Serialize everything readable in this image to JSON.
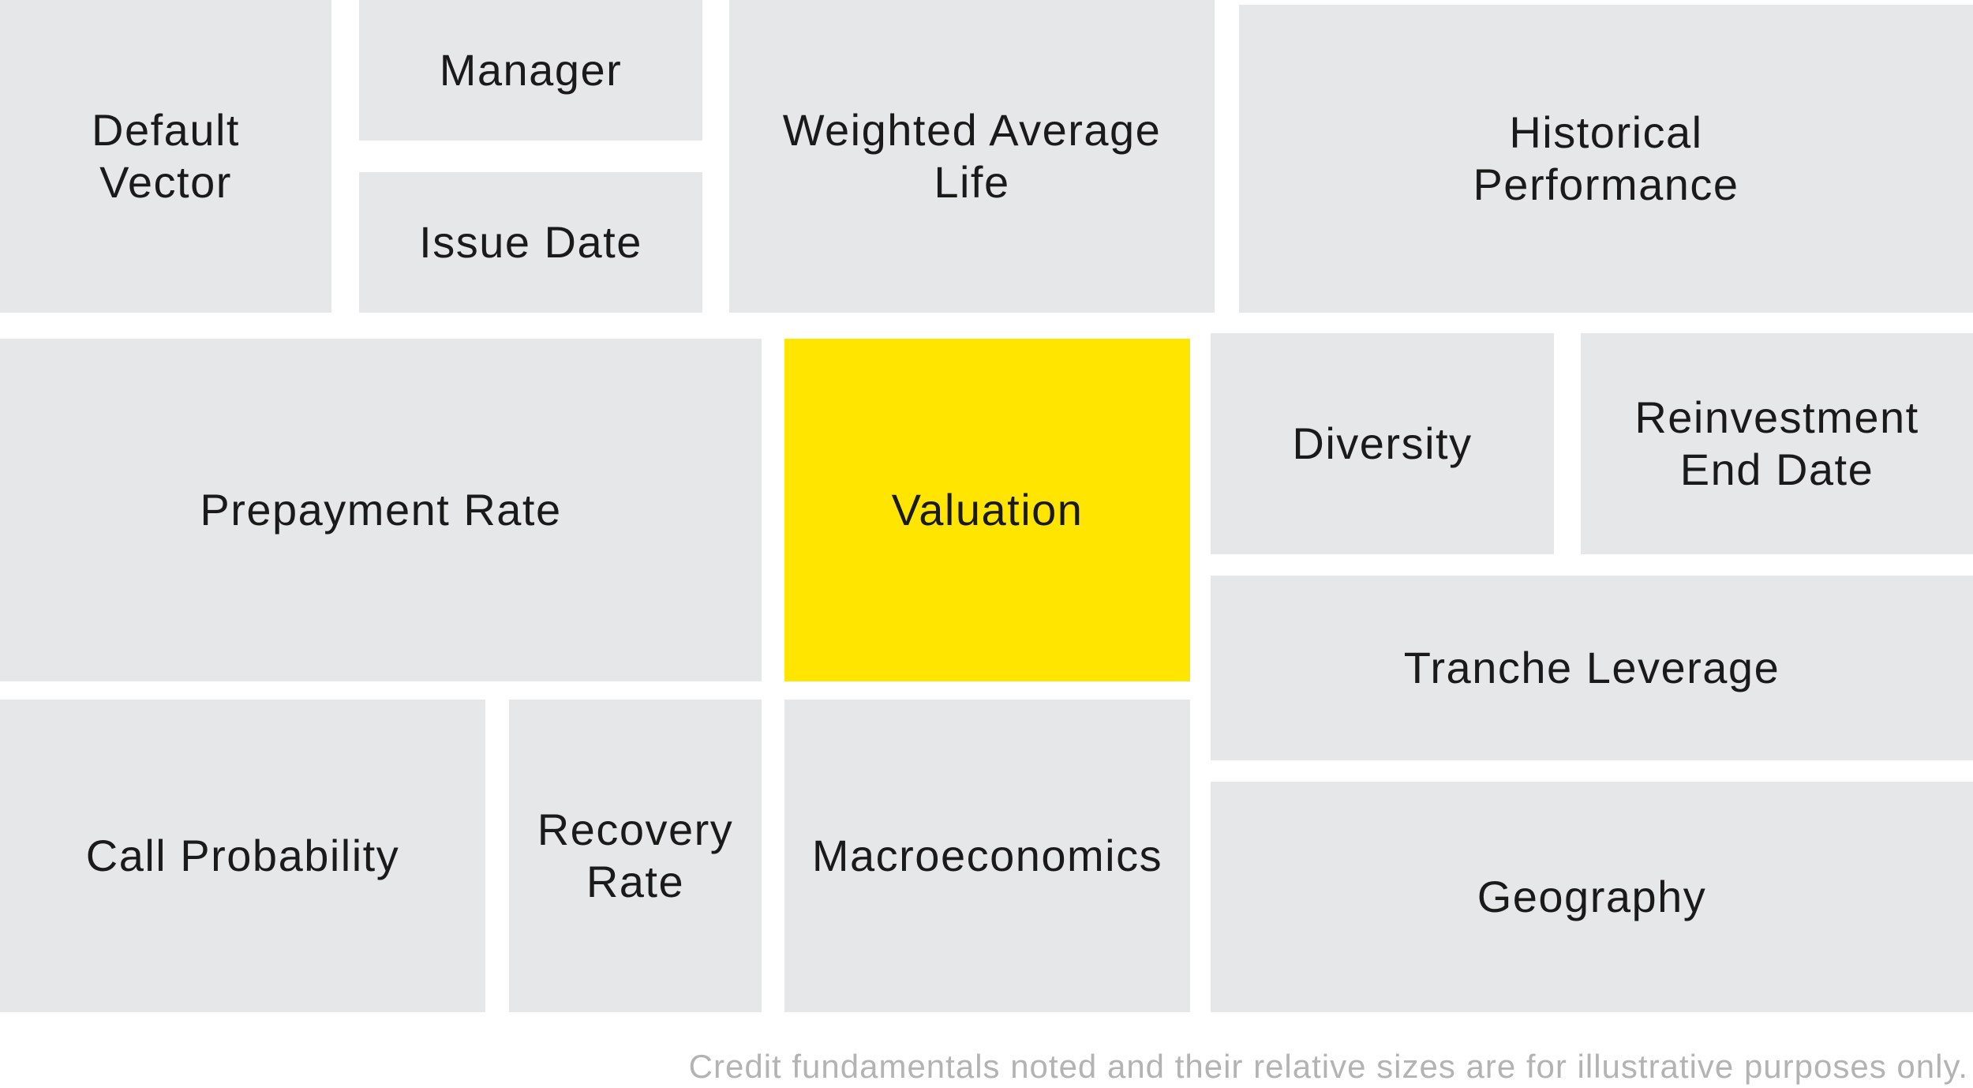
{
  "tiles": {
    "default_vector": "Default\nVector",
    "manager": "Manager",
    "issue_date": "Issue Date",
    "weighted_average_life": "Weighted Average\nLife",
    "historical_performance": "Historical\nPerformance",
    "prepayment_rate": "Prepayment Rate",
    "valuation": "Valuation",
    "diversity": "Diversity",
    "reinvestment_end_date": "Reinvestment\nEnd Date",
    "tranche_leverage": "Tranche Leverage",
    "call_probability": "Call Probability",
    "recovery_rate": "Recovery\nRate",
    "macroeconomics": "Macroeconomics",
    "geography": "Geography"
  },
  "highlight_tile": "valuation",
  "colors": {
    "tile_background": "#e6e7e8",
    "highlight": "#ffe500",
    "caption_text": "#b3b3b3"
  },
  "caption": "Credit fundamentals noted and their relative sizes are for illustrative purposes only."
}
